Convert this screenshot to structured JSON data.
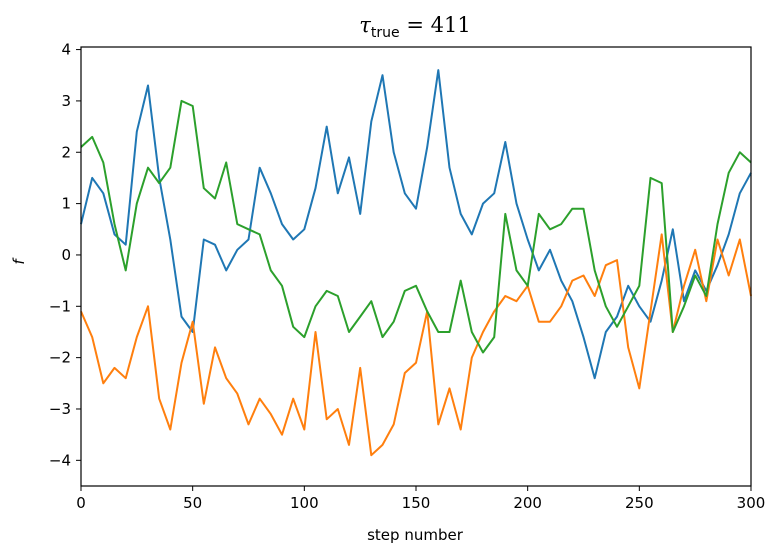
{
  "chart_data": {
    "type": "line",
    "title": "τtrue = 411",
    "title_symbol": "τ",
    "title_subscript": "true",
    "title_rest": " = 411",
    "xlabel": "step number",
    "ylabel": "f",
    "xlim": [
      0,
      300
    ],
    "ylim": [
      -4.5,
      4.05
    ],
    "xticks": [
      0,
      50,
      100,
      150,
      200,
      250,
      300
    ],
    "yticks": [
      -4,
      -3,
      -2,
      -1,
      0,
      1,
      2,
      3,
      4
    ],
    "ytick_labels": [
      "−4",
      "−3",
      "−2",
      "−1",
      "0",
      "1",
      "2",
      "3",
      "4"
    ],
    "grid": false,
    "series": [
      {
        "color": "#1f77b4",
        "x": [
          0,
          5,
          10,
          15,
          20,
          25,
          30,
          35,
          40,
          45,
          50,
          55,
          60,
          65,
          70,
          75,
          80,
          85,
          90,
          95,
          100,
          105,
          110,
          115,
          120,
          125,
          130,
          135,
          140,
          145,
          150,
          155,
          160,
          165,
          170,
          175,
          180,
          185,
          190,
          195,
          200,
          205,
          210,
          215,
          220,
          225,
          230,
          235,
          240,
          245,
          250,
          255,
          260,
          265,
          270,
          275,
          280,
          285,
          290,
          295,
          300
        ],
        "y": [
          0.6,
          1.5,
          1.2,
          0.4,
          0.2,
          2.4,
          3.3,
          1.5,
          0.3,
          -1.2,
          -1.5,
          0.3,
          0.2,
          -0.3,
          0.1,
          0.3,
          1.7,
          1.2,
          0.6,
          0.3,
          0.5,
          1.3,
          2.5,
          1.2,
          1.9,
          0.8,
          2.6,
          3.5,
          2.0,
          1.2,
          0.9,
          2.1,
          3.6,
          1.7,
          0.8,
          0.4,
          1.0,
          1.2,
          2.2,
          1.0,
          0.3,
          -0.3,
          0.1,
          -0.5,
          -0.9,
          -1.6,
          -2.4,
          -1.5,
          -1.2,
          -0.6,
          -1.0,
          -1.3,
          -0.5,
          0.5,
          -0.9,
          -0.3,
          -0.7,
          -0.2,
          0.4,
          1.2,
          1.6
        ]
      },
      {
        "color": "#ff7f0e",
        "x": [
          0,
          5,
          10,
          15,
          20,
          25,
          30,
          35,
          40,
          45,
          50,
          55,
          60,
          65,
          70,
          75,
          80,
          85,
          90,
          95,
          100,
          105,
          110,
          115,
          120,
          125,
          130,
          135,
          140,
          145,
          150,
          155,
          160,
          165,
          170,
          175,
          180,
          185,
          190,
          195,
          200,
          205,
          210,
          215,
          220,
          225,
          230,
          235,
          240,
          245,
          250,
          255,
          260,
          265,
          270,
          275,
          280,
          285,
          290,
          295,
          300
        ],
        "y": [
          -1.1,
          -1.6,
          -2.5,
          -2.2,
          -2.4,
          -1.6,
          -1.0,
          -2.8,
          -3.4,
          -2.1,
          -1.3,
          -2.9,
          -1.8,
          -2.4,
          -2.7,
          -3.3,
          -2.8,
          -3.1,
          -3.5,
          -2.8,
          -3.4,
          -1.5,
          -3.2,
          -3.0,
          -3.7,
          -2.2,
          -3.9,
          -3.7,
          -3.3,
          -2.3,
          -2.1,
          -1.1,
          -3.3,
          -2.6,
          -3.4,
          -2.0,
          -1.5,
          -1.1,
          -0.8,
          -0.9,
          -0.6,
          -1.3,
          -1.3,
          -1.0,
          -0.5,
          -0.4,
          -0.8,
          -0.2,
          -0.1,
          -1.8,
          -2.6,
          -1.1,
          0.4,
          -1.5,
          -0.6,
          0.1,
          -0.9,
          0.3,
          -0.4,
          0.3,
          -0.8
        ]
      },
      {
        "color": "#2ca02c",
        "x": [
          0,
          5,
          10,
          15,
          20,
          25,
          30,
          35,
          40,
          45,
          50,
          55,
          60,
          65,
          70,
          75,
          80,
          85,
          90,
          95,
          100,
          105,
          110,
          115,
          120,
          125,
          130,
          135,
          140,
          145,
          150,
          155,
          160,
          165,
          170,
          175,
          180,
          185,
          190,
          195,
          200,
          205,
          210,
          215,
          220,
          225,
          230,
          235,
          240,
          245,
          250,
          255,
          260,
          265,
          270,
          275,
          280,
          285,
          290,
          295,
          300
        ],
        "y": [
          2.1,
          2.3,
          1.8,
          0.6,
          -0.3,
          1.0,
          1.7,
          1.4,
          1.7,
          3.0,
          2.9,
          1.3,
          1.1,
          1.8,
          0.6,
          0.5,
          0.4,
          -0.3,
          -0.6,
          -1.4,
          -1.6,
          -1.0,
          -0.7,
          -0.8,
          -1.5,
          -1.2,
          -0.9,
          -1.6,
          -1.3,
          -0.7,
          -0.6,
          -1.1,
          -1.5,
          -1.5,
          -0.5,
          -1.5,
          -1.9,
          -1.6,
          0.8,
          -0.3,
          -0.6,
          0.8,
          0.5,
          0.6,
          0.9,
          0.9,
          -0.3,
          -1.0,
          -1.4,
          -1.0,
          -0.6,
          1.5,
          1.4,
          -1.5,
          -1.0,
          -0.4,
          -0.8,
          0.6,
          1.6,
          2.0,
          1.8
        ]
      }
    ]
  }
}
